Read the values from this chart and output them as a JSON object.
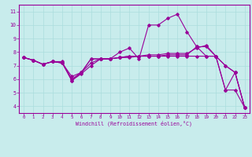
{
  "xlabel": "Windchill (Refroidissement éolien,°C)",
  "bg_color": "#c8ecec",
  "line_color": "#990099",
  "grid_color": "#aadddd",
  "xlim": [
    -0.5,
    23.5
  ],
  "ylim": [
    3.5,
    11.5
  ],
  "xticks": [
    0,
    1,
    2,
    3,
    4,
    5,
    6,
    7,
    8,
    9,
    10,
    11,
    12,
    13,
    14,
    15,
    16,
    17,
    18,
    19,
    20,
    21,
    22,
    23
  ],
  "yticks": [
    4,
    5,
    6,
    7,
    8,
    9,
    10,
    11
  ],
  "series": [
    [
      7.6,
      7.4,
      7.1,
      7.3,
      7.3,
      5.9,
      6.5,
      7.2,
      7.5,
      7.5,
      8.0,
      8.3,
      7.5,
      10.0,
      10.0,
      10.5,
      10.8,
      9.5,
      8.4,
      7.7,
      7.7,
      5.2,
      6.5,
      3.9
    ],
    [
      7.6,
      7.4,
      7.1,
      7.3,
      7.2,
      6.2,
      6.5,
      7.5,
      7.5,
      7.5,
      7.6,
      7.7,
      7.7,
      7.7,
      7.7,
      7.8,
      7.8,
      7.8,
      8.4,
      8.4,
      7.7,
      7.0,
      6.5,
      3.9
    ],
    [
      7.6,
      7.4,
      7.1,
      7.3,
      7.2,
      6.0,
      6.5,
      7.5,
      7.5,
      7.5,
      7.6,
      7.7,
      7.7,
      7.8,
      7.8,
      7.9,
      7.9,
      7.9,
      8.3,
      8.5,
      7.7,
      7.0,
      6.5,
      3.9
    ],
    [
      7.6,
      7.4,
      7.1,
      7.3,
      7.2,
      5.9,
      6.4,
      7.0,
      7.5,
      7.5,
      7.6,
      7.6,
      7.7,
      7.7,
      7.7,
      7.7,
      7.7,
      7.7,
      7.7,
      7.7,
      7.7,
      5.2,
      5.2,
      3.9
    ]
  ]
}
